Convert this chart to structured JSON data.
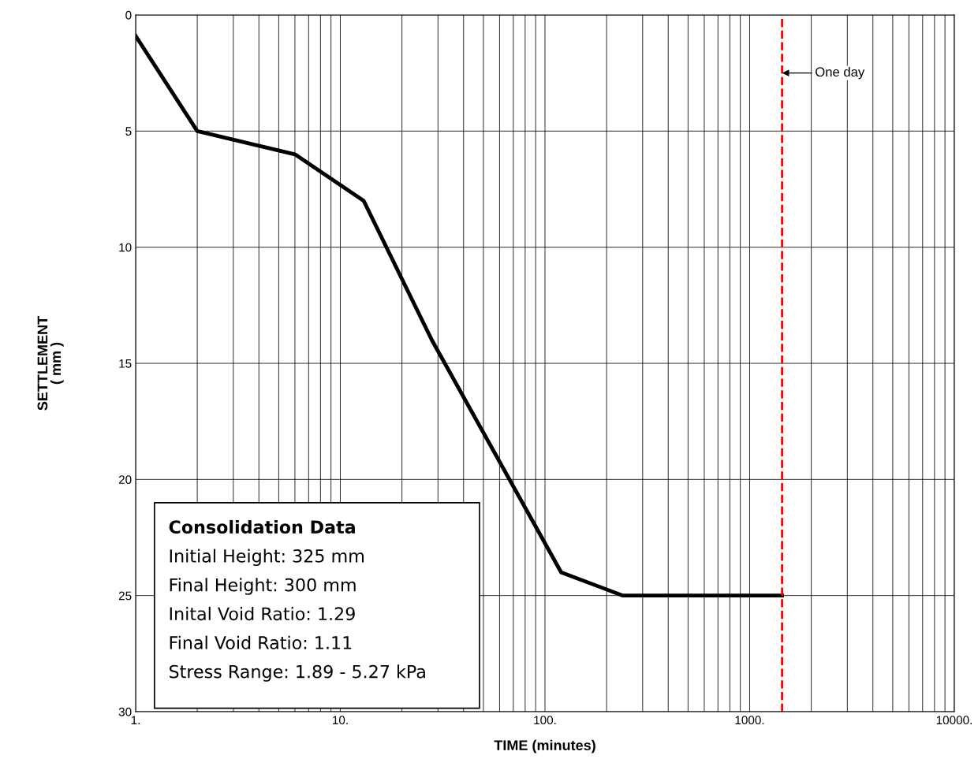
{
  "chart_data": {
    "type": "line",
    "xlabel": "TIME (minutes)",
    "ylabel": "SETTLEMENT\n( mm )",
    "x": [
      1,
      2,
      6,
      13,
      28,
      120,
      240,
      1440
    ],
    "series": [
      {
        "color": "#000000",
        "values": [
          0.9,
          5,
          6,
          8,
          14,
          24,
          25,
          25
        ]
      }
    ],
    "log": "x",
    "xlim": [
      1,
      10000
    ],
    "ylim": [
      30,
      0
    ],
    "xticks": [
      {
        "value": 1,
        "label": "1."
      },
      {
        "value": 10,
        "label": "10."
      },
      {
        "value": 100,
        "label": "100."
      },
      {
        "value": 1000,
        "label": "1000."
      },
      {
        "value": 10000,
        "label": "10000."
      }
    ],
    "yticks": [
      0,
      5,
      10,
      15,
      20,
      25,
      30
    ],
    "grid": true,
    "marker": "none",
    "line_style": "solid",
    "legend": false,
    "ref_lines": [
      {
        "axis": "x",
        "value": 1440,
        "label": "One day",
        "color": "#ff0000",
        "line_style": "dashed"
      }
    ],
    "annotations": [
      "Consolidation Data",
      "Initial Height: 325 mm",
      "Final Height: 300 mm",
      "Inital Void Ratio: 1.29",
      "Final Void Ratio: 1.11",
      "Stress Range: 1.89 - 5.27 kPa"
    ]
  }
}
